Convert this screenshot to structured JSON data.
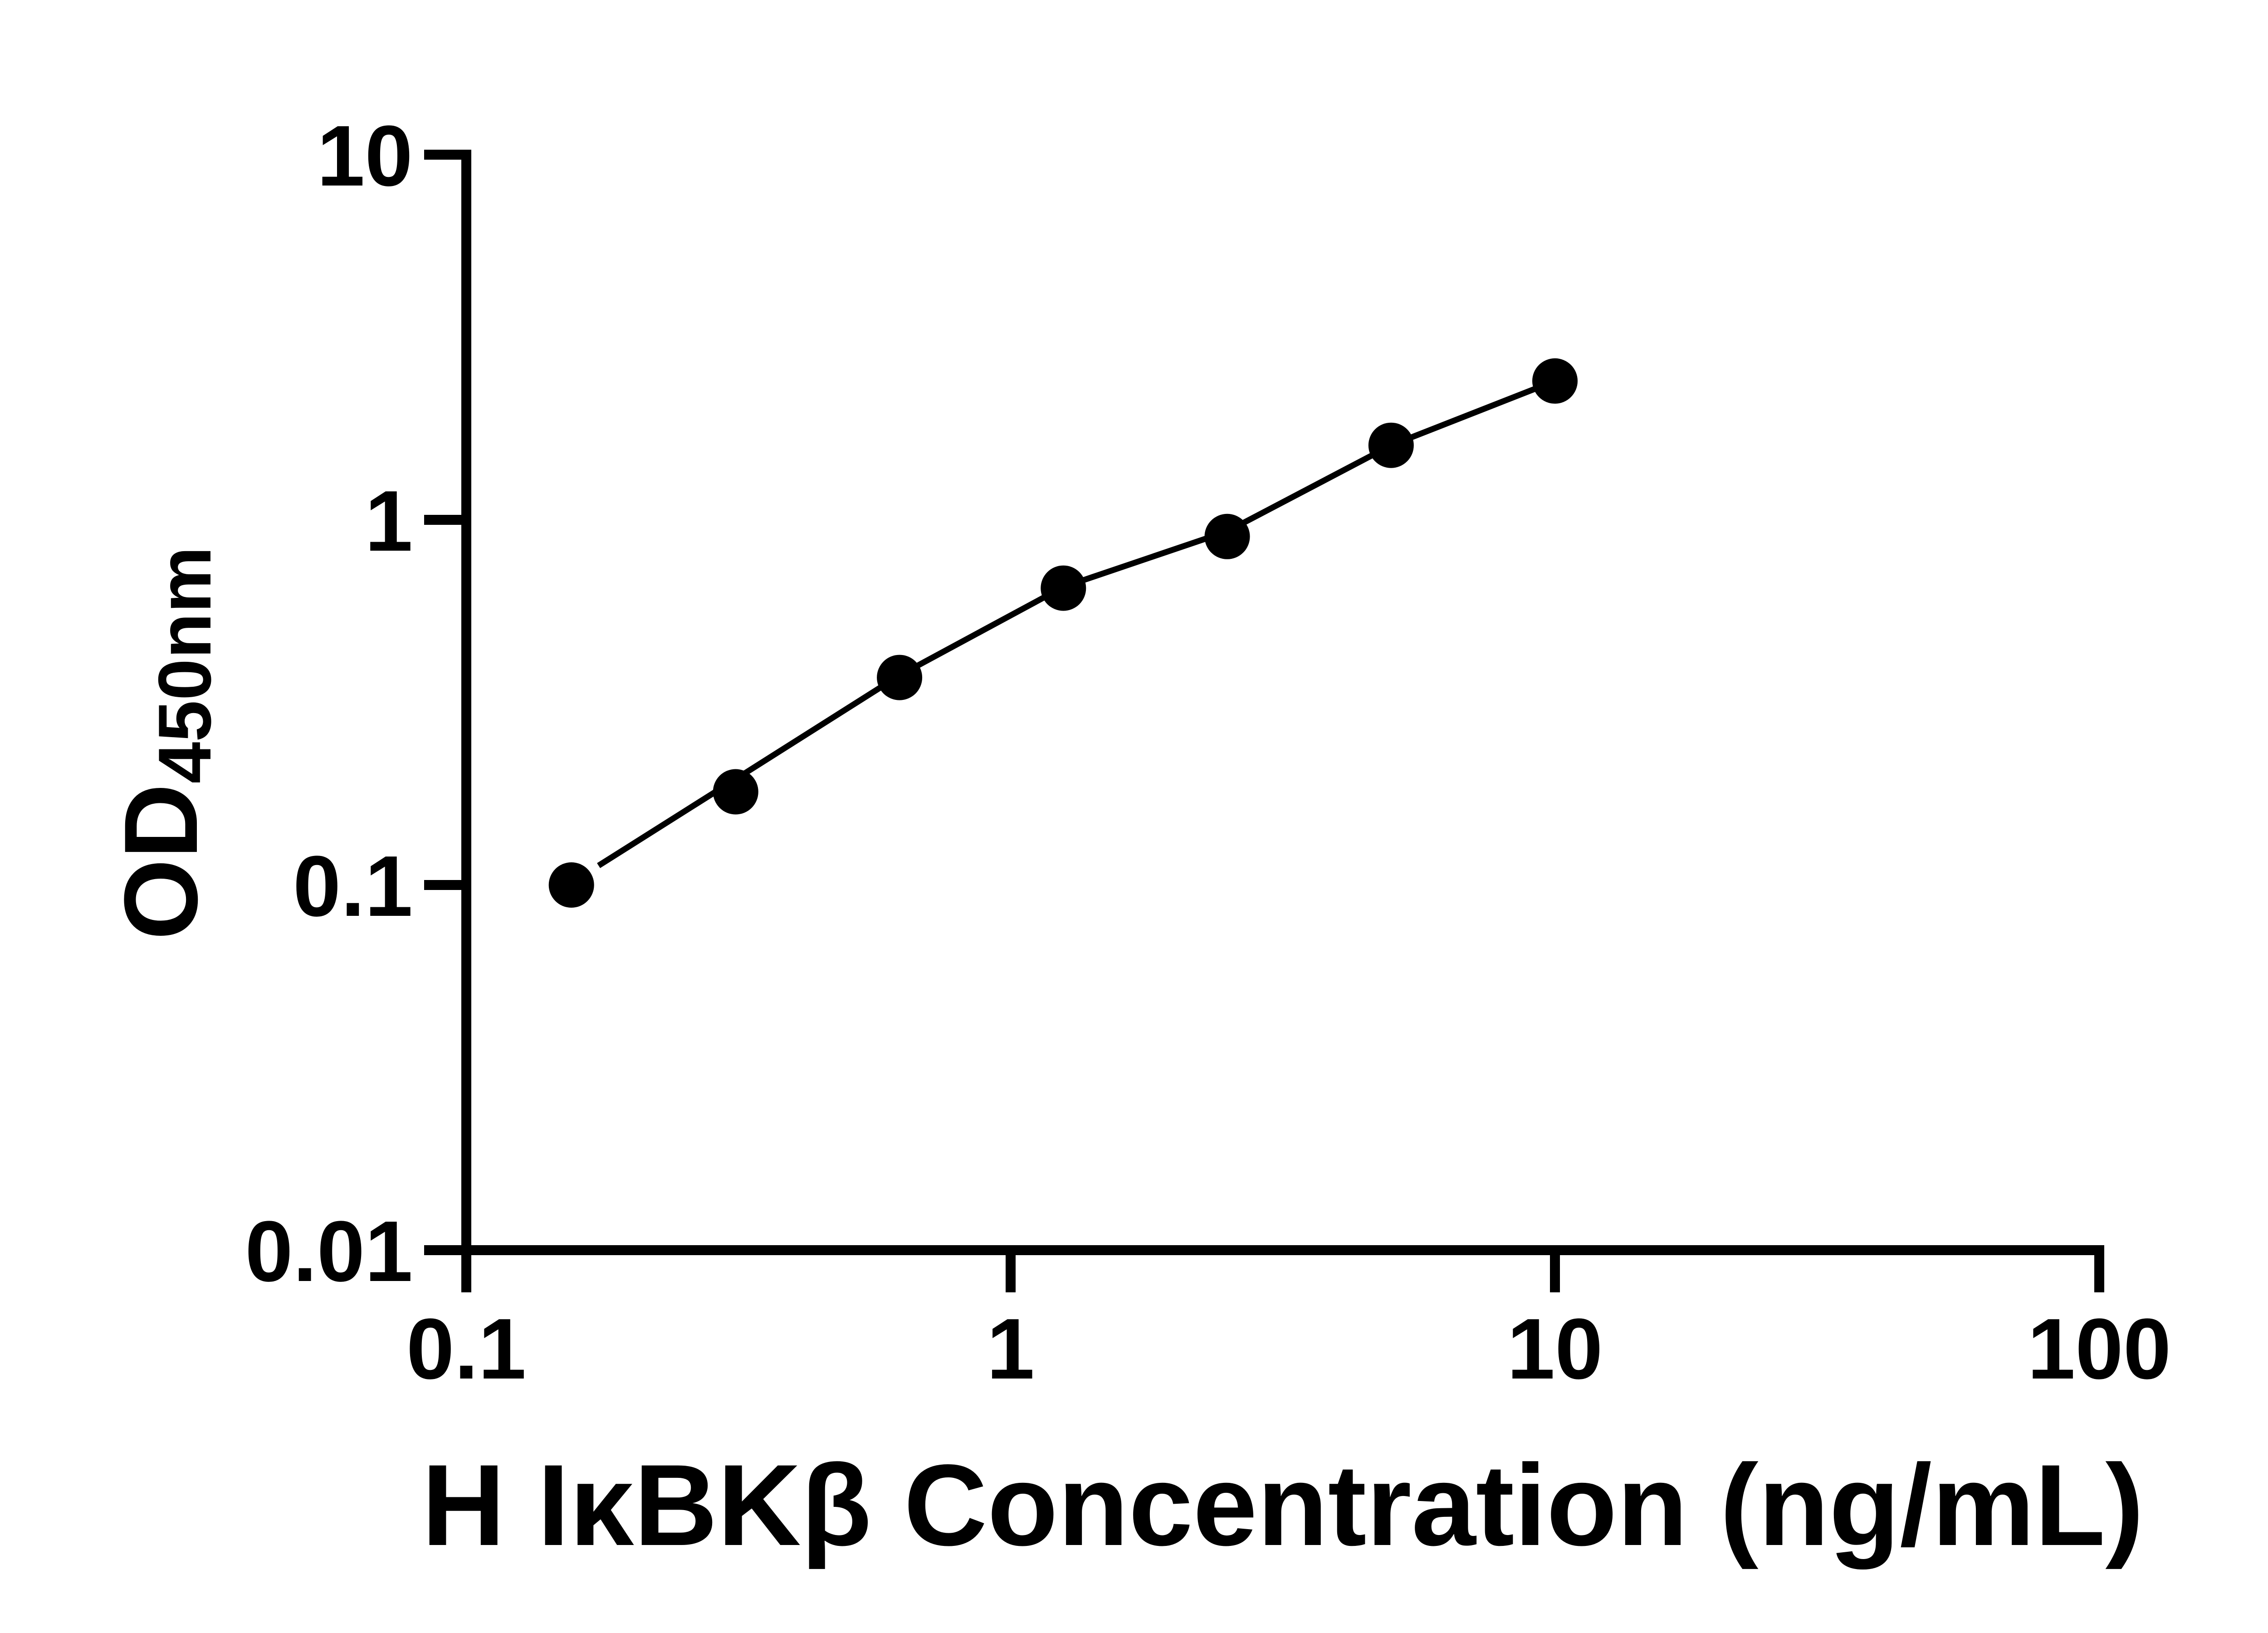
{
  "figure": {
    "background_color": "#ffffff",
    "foreground_color": "#000000"
  },
  "chart_data": {
    "type": "scatter",
    "title": "",
    "xlabel": "H IκBKβ Concentration (ng/mL)",
    "ylabel_main": "OD",
    "ylabel_sub": "450nm",
    "x_scale": "log",
    "y_scale": "log",
    "xlim": [
      0.1,
      100
    ],
    "ylim": [
      0.01,
      10
    ],
    "x_ticks": [
      0.1,
      1,
      10,
      100
    ],
    "x_tick_labels": [
      "0.1",
      "1",
      "10",
      "100"
    ],
    "y_ticks": [
      10,
      1,
      0.1,
      0.01
    ],
    "y_tick_labels": [
      "10",
      "1",
      "0.1",
      "0.01"
    ],
    "grid": false,
    "legend": false,
    "series": [
      {
        "name": "standard-curve-points",
        "marker": "circle",
        "color": "#000000",
        "points": [
          [
            0.156,
            0.1
          ],
          [
            0.3125,
            0.18
          ],
          [
            0.625,
            0.37
          ],
          [
            1.25,
            0.65
          ],
          [
            2.5,
            0.9
          ],
          [
            5,
            1.6
          ],
          [
            10,
            2.4
          ]
        ]
      }
    ],
    "fit_line": {
      "name": "fitted-curve",
      "color": "#000000",
      "points": [
        [
          0.175,
          0.113
        ],
        [
          0.3125,
          0.195
        ],
        [
          0.625,
          0.375
        ],
        [
          1.25,
          0.655
        ],
        [
          2.5,
          0.93
        ],
        [
          5,
          1.6
        ],
        [
          10,
          2.4
        ]
      ]
    }
  }
}
